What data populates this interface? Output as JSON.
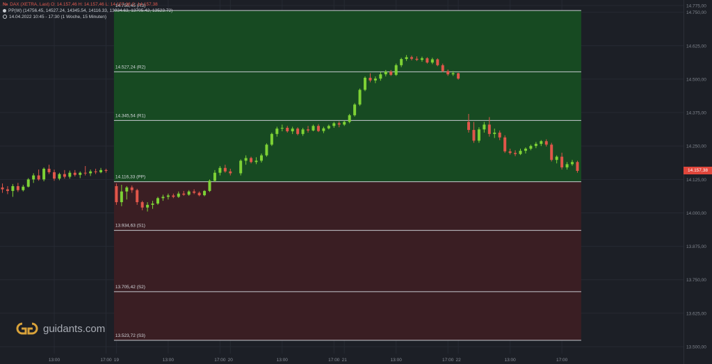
{
  "header": {
    "symbol_icon": "instrument-flag-icon",
    "symbol_prefix": "№",
    "line1": "DAX (XETRA, Last)  O: 14.157,46  H: 14.157,46  L: 14.157,38  C: 14.157,38",
    "line2": "PP(W)  (14756.45, 14527.24, 14345.54, 14116.33, 13934.63, 13705.42, 13523.72)",
    "line3": "14.04.2022 10:45 - 17:30   (1 Woche, 15 Minuten)"
  },
  "logo": {
    "text": "guidants.com",
    "icon": "guidants-logo-icon"
  },
  "current_price": {
    "label": "14.157,38",
    "value": 14157.38
  },
  "colors": {
    "background": "#1c1f26",
    "grid": "#262a33",
    "bull": "#7dd135",
    "bear": "#e0564a",
    "zone_above_pp": "#174a22",
    "zone_below_pp": "#3a1e23",
    "level_line": "#c8ccd2",
    "price_tag": "#e0463b"
  },
  "chart_data": {
    "type": "candlestick",
    "title": "DAX (XETRA, Last)",
    "interval": "15 Minuten",
    "range": "1 Woche",
    "ylim": [
      13500,
      14775
    ],
    "y_ticks": [
      {
        "value": 14775,
        "label": "14.775,00"
      },
      {
        "value": 14750,
        "label": "14.750,00"
      },
      {
        "value": 14625,
        "label": "14.625,00"
      },
      {
        "value": 14500,
        "label": "14.500,00"
      },
      {
        "value": 14375,
        "label": "14.375,00"
      },
      {
        "value": 14250,
        "label": "14.250,00"
      },
      {
        "value": 14125,
        "label": "14.125,00"
      },
      {
        "value": 14000,
        "label": "14.000,00"
      },
      {
        "value": 13875,
        "label": "13.875,00"
      },
      {
        "value": 13750,
        "label": "13.750,00"
      },
      {
        "value": 13625,
        "label": "13.625,00"
      },
      {
        "value": 13500,
        "label": "13.500,00"
      }
    ],
    "x_ticks": [
      {
        "label": "13:00",
        "pos": 10
      },
      {
        "label": "17:00",
        "pos": 20
      },
      {
        "label": "19",
        "pos": 22
      },
      {
        "label": "13:00",
        "pos": 32
      },
      {
        "label": "17:00",
        "pos": 42
      },
      {
        "label": "20",
        "pos": 44
      },
      {
        "label": "13:00",
        "pos": 54
      },
      {
        "label": "17:00",
        "pos": 64
      },
      {
        "label": "21",
        "pos": 66
      },
      {
        "label": "13:00",
        "pos": 76
      },
      {
        "label": "17:00",
        "pos": 86
      },
      {
        "label": "22",
        "pos": 88
      },
      {
        "label": "13:00",
        "pos": 98
      },
      {
        "label": "17:00",
        "pos": 108
      }
    ],
    "pivot_levels": [
      {
        "name": "R3",
        "value": 14756.45,
        "label": "14.756,45 (R3)"
      },
      {
        "name": "R2",
        "value": 14527.24,
        "label": "14.527,24 (R2)"
      },
      {
        "name": "R1",
        "value": 14345.54,
        "label": "14.345,54 (R1)"
      },
      {
        "name": "PP",
        "value": 14116.33,
        "label": "14.116,33 (PP)"
      },
      {
        "name": "S1",
        "value": 13934.63,
        "label": "13.934,63 (S1)"
      },
      {
        "name": "S2",
        "value": 13705.42,
        "label": "13.705,42 (S2)"
      },
      {
        "name": "S3",
        "value": 13523.72,
        "label": "13.523,72 (S3)"
      }
    ],
    "pivot_start_pos": 22,
    "pivot_end_pos": 112,
    "candles": [
      {
        "pos": 0,
        "o": 14095,
        "h": 14110,
        "l": 14075,
        "c": 14088
      },
      {
        "pos": 1,
        "o": 14088,
        "h": 14100,
        "l": 14070,
        "c": 14082
      },
      {
        "pos": 2,
        "o": 14082,
        "h": 14108,
        "l": 14060,
        "c": 14100
      },
      {
        "pos": 3,
        "o": 14100,
        "h": 14112,
        "l": 14078,
        "c": 14085
      },
      {
        "pos": 4,
        "o": 14085,
        "h": 14105,
        "l": 14080,
        "c": 14098
      },
      {
        "pos": 5,
        "o": 14098,
        "h": 14130,
        "l": 14095,
        "c": 14125
      },
      {
        "pos": 6,
        "o": 14125,
        "h": 14148,
        "l": 14112,
        "c": 14140
      },
      {
        "pos": 7,
        "o": 14140,
        "h": 14162,
        "l": 14120,
        "c": 14125
      },
      {
        "pos": 8,
        "o": 14125,
        "h": 14170,
        "l": 14118,
        "c": 14165
      },
      {
        "pos": 9,
        "o": 14165,
        "h": 14180,
        "l": 14145,
        "c": 14152
      },
      {
        "pos": 10,
        "o": 14152,
        "h": 14162,
        "l": 14120,
        "c": 14128
      },
      {
        "pos": 11,
        "o": 14128,
        "h": 14150,
        "l": 14122,
        "c": 14145
      },
      {
        "pos": 12,
        "o": 14145,
        "h": 14160,
        "l": 14128,
        "c": 14135
      },
      {
        "pos": 13,
        "o": 14135,
        "h": 14158,
        "l": 14128,
        "c": 14150
      },
      {
        "pos": 14,
        "o": 14150,
        "h": 14160,
        "l": 14136,
        "c": 14142
      },
      {
        "pos": 15,
        "o": 14142,
        "h": 14155,
        "l": 14130,
        "c": 14150
      },
      {
        "pos": 16,
        "o": 14150,
        "h": 14175,
        "l": 14140,
        "c": 14148
      },
      {
        "pos": 17,
        "o": 14148,
        "h": 14162,
        "l": 14138,
        "c": 14155
      },
      {
        "pos": 18,
        "o": 14155,
        "h": 14165,
        "l": 14145,
        "c": 14152
      },
      {
        "pos": 19,
        "o": 14152,
        "h": 14168,
        "l": 14148,
        "c": 14160
      },
      {
        "pos": 20,
        "o": 14160,
        "h": 14165,
        "l": 14150,
        "c": 14157
      },
      {
        "pos": 22,
        "o": 14100,
        "h": 14110,
        "l": 14030,
        "c": 14040
      },
      {
        "pos": 23,
        "o": 14040,
        "h": 14105,
        "l": 14025,
        "c": 14080
      },
      {
        "pos": 24,
        "o": 14080,
        "h": 14100,
        "l": 14050,
        "c": 14095
      },
      {
        "pos": 25,
        "o": 14095,
        "h": 14102,
        "l": 14075,
        "c": 14085
      },
      {
        "pos": 26,
        "o": 14085,
        "h": 14090,
        "l": 14030,
        "c": 14040
      },
      {
        "pos": 27,
        "o": 14040,
        "h": 14045,
        "l": 14010,
        "c": 14020
      },
      {
        "pos": 28,
        "o": 14020,
        "h": 14040,
        "l": 14005,
        "c": 14030
      },
      {
        "pos": 29,
        "o": 14030,
        "h": 14045,
        "l": 14015,
        "c": 14035
      },
      {
        "pos": 30,
        "o": 14035,
        "h": 14060,
        "l": 14030,
        "c": 14055
      },
      {
        "pos": 31,
        "o": 14055,
        "h": 14068,
        "l": 14045,
        "c": 14060
      },
      {
        "pos": 32,
        "o": 14060,
        "h": 14072,
        "l": 14050,
        "c": 14065
      },
      {
        "pos": 33,
        "o": 14065,
        "h": 14072,
        "l": 14055,
        "c": 14060
      },
      {
        "pos": 34,
        "o": 14060,
        "h": 14080,
        "l": 14056,
        "c": 14072
      },
      {
        "pos": 35,
        "o": 14072,
        "h": 14082,
        "l": 14064,
        "c": 14068
      },
      {
        "pos": 36,
        "o": 14068,
        "h": 14085,
        "l": 14064,
        "c": 14080
      },
      {
        "pos": 37,
        "o": 14080,
        "h": 14088,
        "l": 14070,
        "c": 14075
      },
      {
        "pos": 38,
        "o": 14075,
        "h": 14080,
        "l": 14062,
        "c": 14066
      },
      {
        "pos": 39,
        "o": 14066,
        "h": 14085,
        "l": 14062,
        "c": 14082
      },
      {
        "pos": 40,
        "o": 14082,
        "h": 14125,
        "l": 14078,
        "c": 14120
      },
      {
        "pos": 41,
        "o": 14120,
        "h": 14160,
        "l": 14115,
        "c": 14150
      },
      {
        "pos": 42,
        "o": 14150,
        "h": 14175,
        "l": 14140,
        "c": 14168
      },
      {
        "pos": 43,
        "o": 14168,
        "h": 14180,
        "l": 14150,
        "c": 14155
      },
      {
        "pos": 44,
        "o": 14155,
        "h": 14165,
        "l": 14140,
        "c": 14148
      },
      {
        "pos": 46,
        "o": 14148,
        "h": 14200,
        "l": 14140,
        "c": 14195
      },
      {
        "pos": 47,
        "o": 14195,
        "h": 14215,
        "l": 14180,
        "c": 14205
      },
      {
        "pos": 48,
        "o": 14205,
        "h": 14210,
        "l": 14185,
        "c": 14190
      },
      {
        "pos": 49,
        "o": 14190,
        "h": 14208,
        "l": 14182,
        "c": 14195
      },
      {
        "pos": 50,
        "o": 14195,
        "h": 14222,
        "l": 14188,
        "c": 14215
      },
      {
        "pos": 51,
        "o": 14215,
        "h": 14260,
        "l": 14210,
        "c": 14255
      },
      {
        "pos": 52,
        "o": 14255,
        "h": 14300,
        "l": 14250,
        "c": 14295
      },
      {
        "pos": 53,
        "o": 14295,
        "h": 14322,
        "l": 14285,
        "c": 14315
      },
      {
        "pos": 54,
        "o": 14315,
        "h": 14330,
        "l": 14305,
        "c": 14318
      },
      {
        "pos": 55,
        "o": 14318,
        "h": 14325,
        "l": 14300,
        "c": 14305
      },
      {
        "pos": 56,
        "o": 14305,
        "h": 14322,
        "l": 14295,
        "c": 14315
      },
      {
        "pos": 57,
        "o": 14315,
        "h": 14320,
        "l": 14290,
        "c": 14295
      },
      {
        "pos": 58,
        "o": 14295,
        "h": 14318,
        "l": 14288,
        "c": 14312
      },
      {
        "pos": 59,
        "o": 14312,
        "h": 14325,
        "l": 14300,
        "c": 14308
      },
      {
        "pos": 60,
        "o": 14308,
        "h": 14330,
        "l": 14305,
        "c": 14325
      },
      {
        "pos": 61,
        "o": 14325,
        "h": 14332,
        "l": 14302,
        "c": 14306
      },
      {
        "pos": 62,
        "o": 14306,
        "h": 14322,
        "l": 14298,
        "c": 14316
      },
      {
        "pos": 63,
        "o": 14316,
        "h": 14330,
        "l": 14312,
        "c": 14325
      },
      {
        "pos": 64,
        "o": 14325,
        "h": 14340,
        "l": 14318,
        "c": 14335
      },
      {
        "pos": 65,
        "o": 14335,
        "h": 14342,
        "l": 14320,
        "c": 14330
      },
      {
        "pos": 66,
        "o": 14330,
        "h": 14345,
        "l": 14325,
        "c": 14340
      },
      {
        "pos": 67,
        "o": 14340,
        "h": 14370,
        "l": 14335,
        "c": 14365
      },
      {
        "pos": 68,
        "o": 14365,
        "h": 14410,
        "l": 14360,
        "c": 14405
      },
      {
        "pos": 69,
        "o": 14405,
        "h": 14465,
        "l": 14400,
        "c": 14460
      },
      {
        "pos": 70,
        "o": 14460,
        "h": 14510,
        "l": 14455,
        "c": 14505
      },
      {
        "pos": 71,
        "o": 14505,
        "h": 14522,
        "l": 14488,
        "c": 14495
      },
      {
        "pos": 72,
        "o": 14495,
        "h": 14510,
        "l": 14485,
        "c": 14502
      },
      {
        "pos": 73,
        "o": 14502,
        "h": 14526,
        "l": 14494,
        "c": 14518
      },
      {
        "pos": 74,
        "o": 14518,
        "h": 14534,
        "l": 14510,
        "c": 14528
      },
      {
        "pos": 75,
        "o": 14528,
        "h": 14534,
        "l": 14512,
        "c": 14516
      },
      {
        "pos": 76,
        "o": 14516,
        "h": 14558,
        "l": 14512,
        "c": 14552
      },
      {
        "pos": 77,
        "o": 14552,
        "h": 14580,
        "l": 14545,
        "c": 14575
      },
      {
        "pos": 78,
        "o": 14575,
        "h": 14590,
        "l": 14568,
        "c": 14582
      },
      {
        "pos": 79,
        "o": 14582,
        "h": 14588,
        "l": 14570,
        "c": 14576
      },
      {
        "pos": 80,
        "o": 14576,
        "h": 14585,
        "l": 14568,
        "c": 14572
      },
      {
        "pos": 81,
        "o": 14572,
        "h": 14584,
        "l": 14565,
        "c": 14578
      },
      {
        "pos": 82,
        "o": 14578,
        "h": 14582,
        "l": 14558,
        "c": 14562
      },
      {
        "pos": 83,
        "o": 14562,
        "h": 14580,
        "l": 14556,
        "c": 14574
      },
      {
        "pos": 84,
        "o": 14574,
        "h": 14578,
        "l": 14548,
        "c": 14552
      },
      {
        "pos": 85,
        "o": 14552,
        "h": 14558,
        "l": 14526,
        "c": 14530
      },
      {
        "pos": 86,
        "o": 14530,
        "h": 14536,
        "l": 14512,
        "c": 14518
      },
      {
        "pos": 87,
        "o": 14518,
        "h": 14530,
        "l": 14512,
        "c": 14522
      },
      {
        "pos": 88,
        "o": 14522,
        "h": 14524,
        "l": 14498,
        "c": 14502
      },
      {
        "pos": 90,
        "o": 14340,
        "h": 14370,
        "l": 14300,
        "c": 14310
      },
      {
        "pos": 91,
        "o": 14310,
        "h": 14340,
        "l": 14262,
        "c": 14270
      },
      {
        "pos": 92,
        "o": 14270,
        "h": 14320,
        "l": 14262,
        "c": 14312
      },
      {
        "pos": 93,
        "o": 14312,
        "h": 14340,
        "l": 14300,
        "c": 14330
      },
      {
        "pos": 94,
        "o": 14330,
        "h": 14358,
        "l": 14285,
        "c": 14295
      },
      {
        "pos": 95,
        "o": 14295,
        "h": 14315,
        "l": 14280,
        "c": 14300
      },
      {
        "pos": 96,
        "o": 14300,
        "h": 14308,
        "l": 14272,
        "c": 14282
      },
      {
        "pos": 97,
        "o": 14282,
        "h": 14290,
        "l": 14224,
        "c": 14230
      },
      {
        "pos": 98,
        "o": 14230,
        "h": 14240,
        "l": 14218,
        "c": 14224
      },
      {
        "pos": 99,
        "o": 14224,
        "h": 14234,
        "l": 14212,
        "c": 14220
      },
      {
        "pos": 100,
        "o": 14220,
        "h": 14240,
        "l": 14216,
        "c": 14232
      },
      {
        "pos": 101,
        "o": 14232,
        "h": 14245,
        "l": 14222,
        "c": 14240
      },
      {
        "pos": 102,
        "o": 14240,
        "h": 14255,
        "l": 14234,
        "c": 14250
      },
      {
        "pos": 103,
        "o": 14250,
        "h": 14265,
        "l": 14242,
        "c": 14258
      },
      {
        "pos": 104,
        "o": 14258,
        "h": 14272,
        "l": 14250,
        "c": 14268
      },
      {
        "pos": 105,
        "o": 14268,
        "h": 14275,
        "l": 14248,
        "c": 14255
      },
      {
        "pos": 106,
        "o": 14255,
        "h": 14262,
        "l": 14192,
        "c": 14198
      },
      {
        "pos": 107,
        "o": 14198,
        "h": 14215,
        "l": 14185,
        "c": 14210
      },
      {
        "pos": 108,
        "o": 14210,
        "h": 14225,
        "l": 14162,
        "c": 14170
      },
      {
        "pos": 109,
        "o": 14170,
        "h": 14190,
        "l": 14162,
        "c": 14182
      },
      {
        "pos": 110,
        "o": 14182,
        "h": 14198,
        "l": 14176,
        "c": 14190
      },
      {
        "pos": 111,
        "o": 14190,
        "h": 14195,
        "l": 14150,
        "c": 14157
      }
    ]
  }
}
